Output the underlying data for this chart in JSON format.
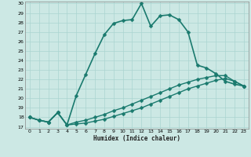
{
  "xlabel": "Humidex (Indice chaleur)",
  "bg_color": "#cce8e4",
  "grid_color": "#aad4d0",
  "line_color": "#1a7a6e",
  "xlim": [
    -0.5,
    23.5
  ],
  "ylim": [
    16.8,
    30.2
  ],
  "xticks": [
    0,
    1,
    2,
    3,
    4,
    5,
    6,
    7,
    8,
    9,
    10,
    11,
    12,
    13,
    14,
    15,
    16,
    17,
    18,
    19,
    20,
    21,
    22,
    23
  ],
  "yticks": [
    17,
    18,
    19,
    20,
    21,
    22,
    23,
    24,
    25,
    26,
    27,
    28,
    29,
    30
  ],
  "series": [
    {
      "x": [
        0,
        1,
        2,
        3,
        4,
        5,
        6,
        7,
        8,
        9,
        10,
        11,
        12,
        13,
        14,
        15,
        16,
        17,
        18,
        19,
        20,
        21,
        22,
        23
      ],
      "y": [
        18.0,
        17.7,
        17.5,
        18.5,
        17.2,
        20.3,
        22.5,
        24.7,
        26.7,
        27.9,
        28.2,
        28.3,
        30.0,
        27.6,
        28.7,
        28.8,
        28.3,
        27.0,
        23.5,
        23.2,
        22.6,
        21.8,
        21.5,
        21.3
      ],
      "marker": "D",
      "markersize": 2.5,
      "linewidth": 1.2
    },
    {
      "x": [
        0,
        1,
        2,
        3,
        4,
        5,
        6,
        7,
        8,
        9,
        10,
        11,
        12,
        13,
        14,
        15,
        16,
        17,
        18,
        19,
        20,
        21,
        22,
        23
      ],
      "y": [
        18.0,
        17.7,
        17.5,
        18.5,
        17.2,
        17.3,
        17.4,
        17.6,
        17.8,
        18.1,
        18.4,
        18.7,
        19.0,
        19.4,
        19.8,
        20.2,
        20.6,
        21.0,
        21.3,
        21.6,
        21.9,
        22.1,
        21.8,
        21.3
      ],
      "marker": "D",
      "markersize": 2.5,
      "linewidth": 1.0
    },
    {
      "x": [
        0,
        1,
        2,
        3,
        4,
        5,
        6,
        7,
        8,
        9,
        10,
        11,
        12,
        13,
        14,
        15,
        16,
        17,
        18,
        19,
        20,
        21,
        22,
        23
      ],
      "y": [
        18.0,
        17.7,
        17.5,
        18.5,
        17.2,
        17.5,
        17.7,
        18.0,
        18.3,
        18.7,
        19.0,
        19.4,
        19.8,
        20.2,
        20.6,
        21.0,
        21.4,
        21.7,
        22.0,
        22.2,
        22.4,
        22.4,
        21.8,
        21.3
      ],
      "marker": "D",
      "markersize": 2.5,
      "linewidth": 1.0
    }
  ]
}
